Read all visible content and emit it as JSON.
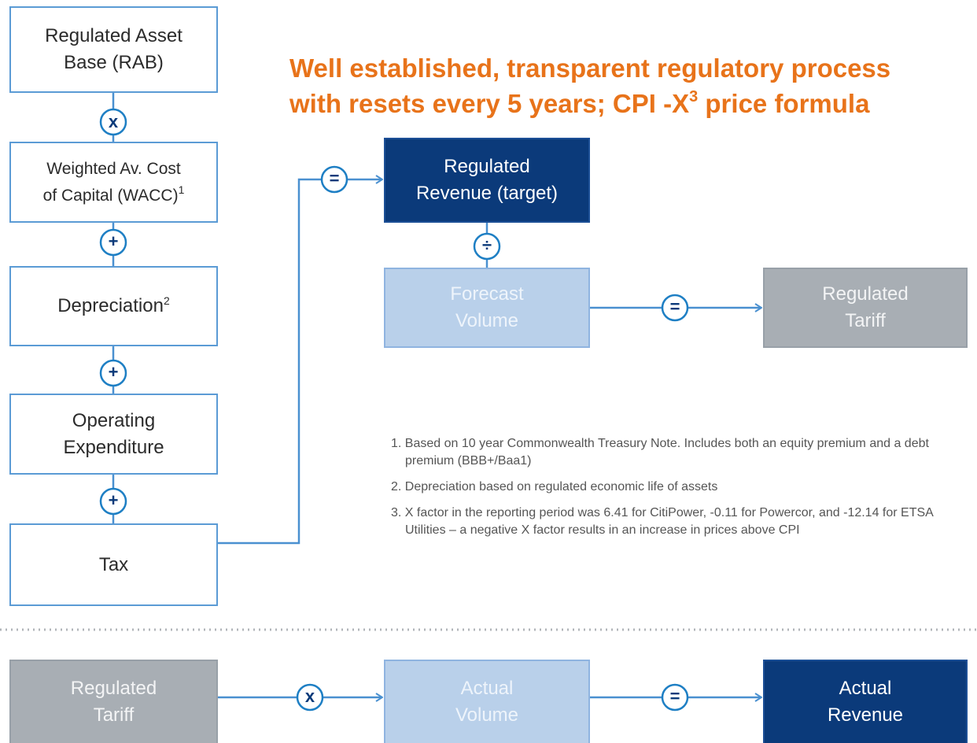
{
  "title": {
    "line1": "Well established, transparent regulatory process",
    "line2": [
      "with resets every 5 years; CPI -X",
      "3",
      " price formula"
    ]
  },
  "build_up": [
    {
      "lines": [
        "Regulated Asset",
        "Base (RAB)"
      ]
    },
    {
      "lines": [
        "Weighted Av. Cost",
        "of Capital (WACC)"
      ],
      "sup": "1"
    },
    {
      "lines": [
        "Depreciation"
      ],
      "sup": "2"
    },
    {
      "lines": [
        "Operating",
        "Expenditure"
      ]
    },
    {
      "lines": [
        "Tax"
      ]
    }
  ],
  "build_up_operators": [
    "x",
    "+",
    "+",
    "+"
  ],
  "target_flow": {
    "operator_1": "=",
    "revenue": [
      "Regulated",
      "Revenue (target)"
    ],
    "operator_2": "÷",
    "volume": [
      "Forecast",
      "Volume"
    ],
    "operator_3": "=",
    "tariff": [
      "Regulated",
      "Tariff"
    ]
  },
  "footnotes": [
    "1. Based on 10 year Commonwealth Treasury Note. Includes both an equity premium and a debt premium (BBB+/Baa1)",
    "2. Depreciation based on regulated economic life of assets",
    "3. X factor in the reporting period was 6.41 for CitiPower, -0.11 for Powercor, and -12.14 for ETSA Utilities – a negative X factor results in an increase in prices above CPI"
  ],
  "actual_flow": {
    "tariff": [
      "Regulated",
      "Tariff"
    ],
    "operator_1": "x",
    "volume": [
      "Actual",
      "Volume"
    ],
    "operator_2": "=",
    "revenue": [
      "Actual",
      "Revenue"
    ]
  }
}
